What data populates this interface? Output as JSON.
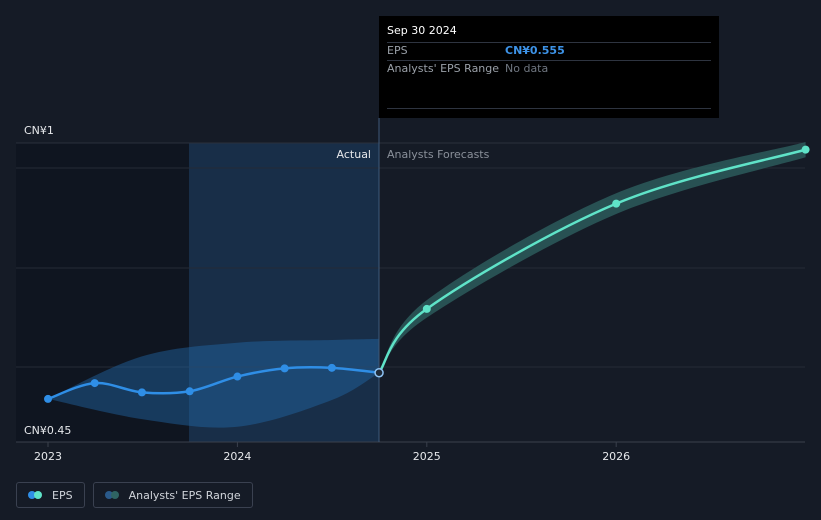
{
  "tooltip": {
    "date": "Sep 30 2024",
    "eps_label": "EPS",
    "eps_value": "CN¥0.555",
    "range_label": "Analysts' EPS Range",
    "range_value": "No data"
  },
  "labels": {
    "actual": "Actual",
    "forecast": "Analysts Forecasts",
    "y_top": "CN¥1",
    "y_bottom": "CN¥0.45"
  },
  "legend": {
    "eps": "EPS",
    "range": "Analysts' EPS Range"
  },
  "colors": {
    "background": "#151b26",
    "eps_actual": "#2f8ee6",
    "eps_forecast": "#5fe3c8",
    "range_past": "#1f4f7c",
    "range_forecast": "#2a5656"
  },
  "chart_data": {
    "type": "line",
    "x_ticks": [
      "2023",
      "2024",
      "2025",
      "2026"
    ],
    "ylim": [
      0.45,
      1.0
    ],
    "series": [
      {
        "name": "EPS",
        "kind": "actual",
        "x": [
          "2023-01-01",
          "2023-04-01",
          "2023-07-01",
          "2023-10-01",
          "2024-01-01",
          "2024-04-01",
          "2024-07-01",
          "2024-09-30"
        ],
        "y": [
          0.507,
          0.536,
          0.519,
          0.521,
          0.548,
          0.563,
          0.564,
          0.555
        ]
      },
      {
        "name": "EPS",
        "kind": "forecast",
        "x": [
          "2024-09-30",
          "2024-12-31",
          "2025-12-31",
          "2026-12-31"
        ],
        "y": [
          0.555,
          0.672,
          0.865,
          0.964
        ]
      }
    ],
    "range": {
      "past": {
        "x": [
          "2023-01-01",
          "2023-07-01",
          "2024-01-01",
          "2024-07-01",
          "2024-09-30"
        ],
        "low": [
          0.507,
          0.47,
          0.456,
          0.505,
          0.555
        ],
        "high": [
          0.507,
          0.585,
          0.61,
          0.615,
          0.617
        ]
      },
      "forecast": {
        "x": [
          "2024-09-30",
          "2024-12-31",
          "2025-12-31",
          "2026-12-31"
        ],
        "low": [
          0.555,
          0.656,
          0.846,
          0.95
        ],
        "high": [
          0.555,
          0.688,
          0.884,
          0.978
        ]
      }
    }
  }
}
